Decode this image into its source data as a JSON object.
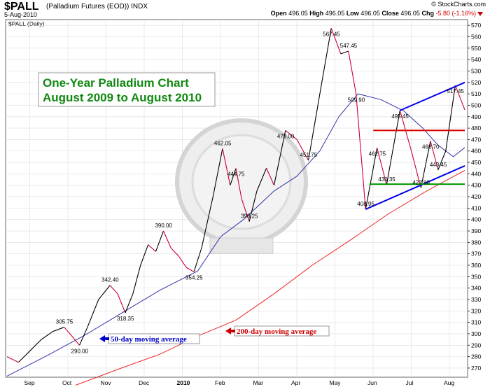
{
  "header": {
    "symbol": "$PALL",
    "name": "(Palladium Futures (EOD))",
    "exchange": "INDX",
    "date": "5-Aug-2010",
    "brand": "© StockCharts.com",
    "open_label": "Open",
    "open": "496.05",
    "high_label": "High",
    "high": "496.05",
    "low_label": "Low",
    "low": "496.05",
    "close_label": "Close",
    "close": "496.05",
    "chg_label": "Chg",
    "chg": "-5.80 (-1.16%)"
  },
  "chart_data": {
    "type": "line",
    "series_label": "$PALL (Daily)",
    "title_line1": "One-Year Palladium Chart",
    "title_line2": "August 2009 to August 2010",
    "ylim": [
      262,
      575
    ],
    "yticks": [
      270,
      280,
      290,
      300,
      310,
      320,
      330,
      340,
      350,
      360,
      370,
      380,
      390,
      400,
      410,
      420,
      430,
      440,
      450,
      460,
      470,
      480,
      490,
      500,
      510,
      520,
      530,
      540,
      550,
      560,
      570
    ],
    "x_labels": [
      "Sep",
      "Oct",
      "Nov",
      "Dec",
      "2010",
      "Feb",
      "Mar",
      "Apr",
      "May",
      "Jun",
      "Jul",
      "Aug"
    ],
    "x_label_month_index": [
      1,
      2,
      3,
      4,
      5,
      6,
      7,
      8,
      9,
      10,
      11,
      12
    ],
    "price": [
      [
        0.0,
        280
      ],
      [
        0.3,
        275
      ],
      [
        0.6,
        285
      ],
      [
        0.9,
        295
      ],
      [
        1.2,
        302
      ],
      [
        1.5,
        305.75
      ],
      [
        1.7,
        298
      ],
      [
        1.9,
        290
      ],
      [
        2.1,
        305
      ],
      [
        2.4,
        330
      ],
      [
        2.7,
        342.4
      ],
      [
        2.9,
        335
      ],
      [
        3.1,
        318.35
      ],
      [
        3.3,
        335
      ],
      [
        3.5,
        360
      ],
      [
        3.7,
        378
      ],
      [
        3.9,
        372
      ],
      [
        4.1,
        390
      ],
      [
        4.3,
        375
      ],
      [
        4.5,
        368
      ],
      [
        4.7,
        358
      ],
      [
        4.9,
        354.25
      ],
      [
        5.1,
        375
      ],
      [
        5.4,
        420
      ],
      [
        5.65,
        462.05
      ],
      [
        5.85,
        430
      ],
      [
        6.0,
        444.75
      ],
      [
        6.15,
        418
      ],
      [
        6.35,
        398.25
      ],
      [
        6.55,
        425
      ],
      [
        6.8,
        445
      ],
      [
        7.0,
        430
      ],
      [
        7.3,
        478
      ],
      [
        7.6,
        470
      ],
      [
        7.9,
        451.75
      ],
      [
        8.2,
        510
      ],
      [
        8.5,
        567.45
      ],
      [
        8.75,
        545
      ],
      [
        8.95,
        547.45
      ],
      [
        9.15,
        509.9
      ],
      [
        9.4,
        408.95
      ],
      [
        9.7,
        462.75
      ],
      [
        9.95,
        430.35
      ],
      [
        10.3,
        495.45
      ],
      [
        10.6,
        460
      ],
      [
        10.85,
        427.8
      ],
      [
        11.1,
        468.7
      ],
      [
        11.3,
        443.45
      ],
      [
        11.5,
        460
      ],
      [
        11.75,
        517.45
      ],
      [
        12.0,
        496.05
      ]
    ],
    "ma50": [
      [
        0.0,
        263
      ],
      [
        1.0,
        280
      ],
      [
        2.0,
        298
      ],
      [
        3.0,
        318
      ],
      [
        4.0,
        338
      ],
      [
        5.0,
        355
      ],
      [
        5.6,
        385
      ],
      [
        6.2,
        400
      ],
      [
        7.0,
        425
      ],
      [
        7.6,
        438
      ],
      [
        8.2,
        460
      ],
      [
        8.7,
        490
      ],
      [
        9.2,
        510
      ],
      [
        9.8,
        505
      ],
      [
        10.4,
        495
      ],
      [
        10.9,
        480
      ],
      [
        11.3,
        465
      ],
      [
        11.7,
        455
      ],
      [
        12.0,
        463
      ]
    ],
    "ma200": [
      [
        1.8,
        255
      ],
      [
        3.0,
        270
      ],
      [
        4.0,
        282
      ],
      [
        5.0,
        298
      ],
      [
        6.0,
        312
      ],
      [
        7.0,
        335
      ],
      [
        8.0,
        360
      ],
      [
        9.0,
        382
      ],
      [
        10.0,
        405
      ],
      [
        11.0,
        425
      ],
      [
        12.0,
        443
      ]
    ],
    "trend_lines": [
      {
        "color": "#0000ee",
        "points": [
          [
            9.4,
            408.95
          ],
          [
            12.0,
            447
          ]
        ]
      },
      {
        "color": "#0000ee",
        "points": [
          [
            10.3,
            495.45
          ],
          [
            12.0,
            520
          ]
        ]
      },
      {
        "color": "#dd0000",
        "points": [
          [
            9.6,
            478
          ],
          [
            12.0,
            478
          ]
        ]
      },
      {
        "color": "#009900",
        "points": [
          [
            9.5,
            431
          ],
          [
            12.0,
            431
          ]
        ]
      }
    ],
    "price_labels": [
      {
        "x": 1.5,
        "y": 305.75,
        "text": "305.75"
      },
      {
        "x": 1.9,
        "y": 290,
        "text": "290.00"
      },
      {
        "x": 2.7,
        "y": 342.4,
        "text": "342.40"
      },
      {
        "x": 3.1,
        "y": 318.35,
        "text": "318.35"
      },
      {
        "x": 4.1,
        "y": 390,
        "text": "390.00"
      },
      {
        "x": 4.9,
        "y": 354.25,
        "text": "354.25"
      },
      {
        "x": 5.65,
        "y": 462.05,
        "text": "462.05"
      },
      {
        "x": 6.0,
        "y": 444.75,
        "text": "444.75"
      },
      {
        "x": 6.35,
        "y": 398.25,
        "text": "398.25"
      },
      {
        "x": 7.3,
        "y": 478,
        "text": "478.00"
      },
      {
        "x": 7.9,
        "y": 451.75,
        "text": "451.75"
      },
      {
        "x": 8.5,
        "y": 567.45,
        "text": "567.45"
      },
      {
        "x": 8.95,
        "y": 547.45,
        "text": "547.45"
      },
      {
        "x": 9.15,
        "y": 509.9,
        "text": "509.90"
      },
      {
        "x": 9.4,
        "y": 408.95,
        "text": "408.95"
      },
      {
        "x": 9.7,
        "y": 462.75,
        "text": "462.75"
      },
      {
        "x": 9.95,
        "y": 430.35,
        "text": "430.35"
      },
      {
        "x": 10.3,
        "y": 495.45,
        "text": "495.45"
      },
      {
        "x": 10.85,
        "y": 427.8,
        "text": "427.80"
      },
      {
        "x": 11.1,
        "y": 468.7,
        "text": "468.70"
      },
      {
        "x": 11.3,
        "y": 443.45,
        "text": "443.45"
      },
      {
        "x": 11.75,
        "y": 517.45,
        "text": "517.45"
      }
    ],
    "annotations": [
      {
        "text": "50-day moving average",
        "color": "#0000cc"
      },
      {
        "text": "200-day moving average",
        "color": "#cc0000"
      }
    ],
    "colors": {
      "price_up": "#000000",
      "price_down": "#cc0033",
      "ma50": "#3333aa",
      "ma200": "#ee2222",
      "grid": "#dddddd",
      "title": "#118811"
    },
    "grid": true
  }
}
